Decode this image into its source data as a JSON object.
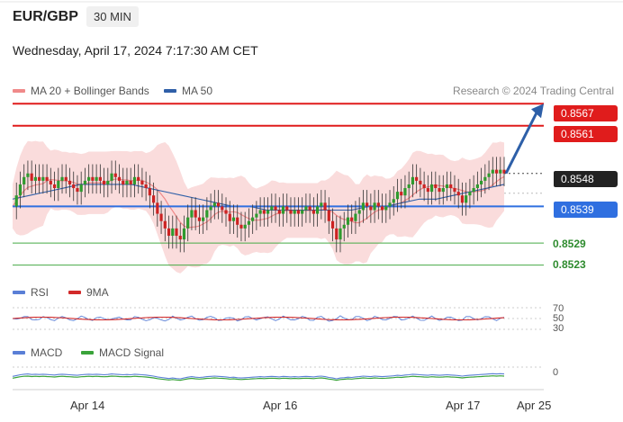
{
  "header": {
    "pair": "EUR/GBP",
    "timeframe": "30 MIN",
    "datetime": "Wednesday, April 17, 2024 7:17:30 AM CET",
    "credit": "Research © 2024 Trading Central"
  },
  "legend_main": [
    {
      "label": "MA 20 + Bollinger Bands",
      "color": "#f08a8a"
    },
    {
      "label": "MA 50",
      "color": "#2f5fa8"
    }
  ],
  "legend_rsi": [
    {
      "label": "RSI",
      "color": "#5a7fd6"
    },
    {
      "label": "9MA",
      "color": "#d22a2a"
    }
  ],
  "legend_macd": [
    {
      "label": "MACD",
      "color": "#5a7fd6"
    },
    {
      "label": "MACD Signal",
      "color": "#3aa33a"
    }
  ],
  "colors": {
    "resistance": "#e01c1c",
    "support": "#2f6fe0",
    "green_level": "#44aa44",
    "current": "#222222",
    "arrow": "#2d5fa8",
    "candle_up": "#2e9a2e",
    "candle_down": "#cc2222",
    "band_fill": "#fadcdc"
  },
  "chart_data": {
    "type": "candlestick",
    "title": "EUR/GBP",
    "timeframe": "30 MIN",
    "x_ticks": [
      "Apr 14",
      "Apr 16",
      "Apr 17",
      "Apr 25"
    ],
    "y_range": [
      0.8518,
      0.8571
    ],
    "levels": [
      {
        "value": "0.8567",
        "kind": "resistance",
        "style": "target"
      },
      {
        "value": "0.8561",
        "kind": "resistance"
      },
      {
        "value": "0.8548",
        "kind": "current"
      },
      {
        "value": "0.8539",
        "kind": "support"
      },
      {
        "value": "0.8529",
        "kind": "minor"
      },
      {
        "value": "0.8523",
        "kind": "minor"
      }
    ],
    "close_series": [
      0.8539,
      0.8542,
      0.8545,
      0.8547,
      0.8548,
      0.8546,
      0.8547,
      0.8546,
      0.8547,
      0.8546,
      0.8545,
      0.8544,
      0.8546,
      0.8547,
      0.8546,
      0.8545,
      0.8544,
      0.8543,
      0.8545,
      0.8546,
      0.8547,
      0.8546,
      0.8547,
      0.8546,
      0.8545,
      0.8546,
      0.8548,
      0.8547,
      0.8546,
      0.8545,
      0.8546,
      0.8545,
      0.8547,
      0.8546,
      0.8545,
      0.8544,
      0.8542,
      0.854,
      0.8537,
      0.8535,
      0.8533,
      0.8531,
      0.8533,
      0.8531,
      0.853,
      0.8533,
      0.8536,
      0.8538,
      0.8536,
      0.8535,
      0.8536,
      0.8538,
      0.8539,
      0.854,
      0.8539,
      0.8538,
      0.8537,
      0.8535,
      0.8536,
      0.8534,
      0.8533,
      0.8534,
      0.8535,
      0.8536,
      0.8537,
      0.8538,
      0.8537,
      0.8538,
      0.8539,
      0.8538,
      0.8537,
      0.8539,
      0.8538,
      0.8537,
      0.8538,
      0.8537,
      0.8538,
      0.8539,
      0.8538,
      0.8537,
      0.8539,
      0.854,
      0.8538,
      0.8535,
      0.8533,
      0.853,
      0.8533,
      0.8534,
      0.8536,
      0.8535,
      0.8537,
      0.8538,
      0.854,
      0.8539,
      0.8538,
      0.854,
      0.8539,
      0.8538,
      0.8539,
      0.854,
      0.8541,
      0.8543,
      0.8542,
      0.8544,
      0.8545,
      0.8547,
      0.8546,
      0.8545,
      0.8544,
      0.8543,
      0.8545,
      0.8544,
      0.8543,
      0.8544,
      0.8545,
      0.8544,
      0.8543,
      0.8542,
      0.854,
      0.8542,
      0.8543,
      0.8544,
      0.8545,
      0.8546,
      0.8547,
      0.8548,
      0.8549,
      0.8548,
      0.8549,
      0.8548
    ],
    "ma50_series": [
      0.8541,
      0.8542,
      0.8543,
      0.8544,
      0.8545,
      0.8545,
      0.8545,
      0.8545,
      0.8544,
      0.8543,
      0.8542,
      0.8541,
      0.854,
      0.8539,
      0.8539,
      0.8538,
      0.8538,
      0.8538,
      0.8538,
      0.8538,
      0.8538,
      0.8539,
      0.8539,
      0.854,
      0.8541,
      0.8541,
      0.8542,
      0.8543,
      0.8544,
      0.8545
    ],
    "projection": {
      "from": 0.8548,
      "to": 0.8567
    },
    "rsi": {
      "levels": [
        "70",
        "50",
        "30"
      ]
    },
    "macd": {
      "levels": [
        "0"
      ]
    }
  }
}
